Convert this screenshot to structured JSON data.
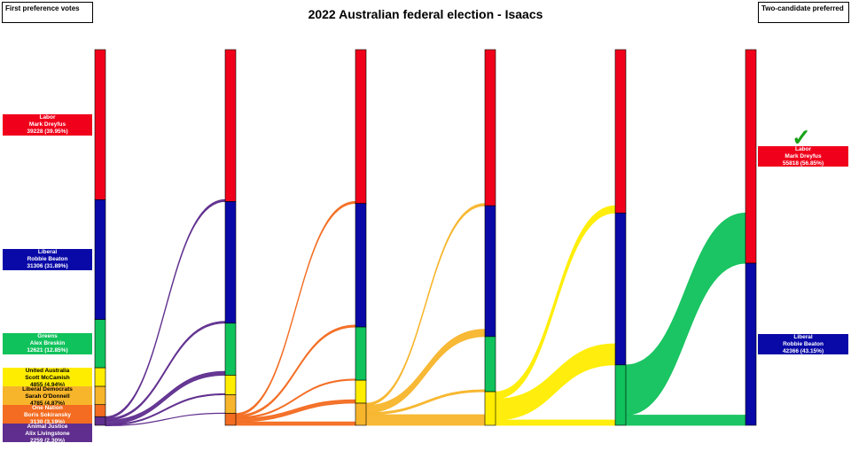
{
  "title": "2022 Australian federal election - Isaacs",
  "left_label": "First preference votes",
  "right_label": "Two-candidate preferred",
  "winner_mark": "✓",
  "colors": {
    "Labor": "#f0001b",
    "Liberal": "#0909a8",
    "Greens": "#10c25b",
    "United Australia": "#ffed00",
    "Liberal Democrats": "#f7b52b",
    "One Nation": "#f36c21",
    "Animal Justice": "#5f2e8e"
  },
  "chart_data": {
    "type": "sankey",
    "title": "2022 Australian federal election - Isaacs",
    "total_votes": 98184,
    "first_preferences": [
      {
        "party": "Labor",
        "candidate": "Mark Dreyfus",
        "votes": 39228,
        "pct_label": "39228 (39.95%)",
        "text_color": "#ffffff"
      },
      {
        "party": "Liberal",
        "candidate": "Robbie Beaton",
        "votes": 31306,
        "pct_label": "31306 (31.89%)",
        "text_color": "#ffffff"
      },
      {
        "party": "Greens",
        "candidate": "Alex Breskin",
        "votes": 12621,
        "pct_label": "12621 (12.85%)",
        "text_color": "#ffffff"
      },
      {
        "party": "United Australia",
        "candidate": "Scott McCamish",
        "votes": 4855,
        "pct_label": "4855 (4.94%)",
        "text_color": "#000000"
      },
      {
        "party": "Liberal Democrats",
        "candidate": "Sarah O'Donnell",
        "votes": 4785,
        "pct_label": "4785 (4.87%)",
        "text_color": "#000000"
      },
      {
        "party": "One Nation",
        "candidate": "Boris Sokiransky",
        "votes": 3130,
        "pct_label": "3130 (3.19%)",
        "text_color": "#ffffff"
      },
      {
        "party": "Animal Justice",
        "candidate": "Alix Livingstone",
        "votes": 2259,
        "pct_label": "2259 (2.30%)",
        "text_color": "#ffffff"
      }
    ],
    "rounds": [
      {
        "Labor": 39228,
        "Liberal": 31306,
        "Greens": 12621,
        "United Australia": 4855,
        "Liberal Democrats": 4785,
        "One Nation": 3130,
        "Animal Justice": 2259
      },
      {
        "Labor": 39700,
        "Liberal": 31800,
        "Greens": 13600,
        "United Australia": 5100,
        "Liberal Democrats": 4880,
        "One Nation": 3100
      },
      {
        "Labor": 40200,
        "Liberal": 32300,
        "Greens": 13900,
        "United Australia": 6000,
        "Liberal Democrats": 5784
      },
      {
        "Labor": 40800,
        "Liberal": 34200,
        "Greens": 14400,
        "United Australia": 8784
      },
      {
        "Labor": 42700,
        "Liberal": 39700,
        "Greens": 15784
      },
      {
        "Labor": 55818,
        "Liberal": 42366
      }
    ],
    "flows": [
      {
        "from": "Animal Justice",
        "to": {
          "Labor": 500,
          "Liberal": 500,
          "Greens": 1000,
          "United Australia": 300,
          "Liberal Democrats": 100,
          "One Nation": 0
        }
      },
      {
        "from": "One Nation",
        "to": {
          "Labor": 500,
          "Liberal": 500,
          "Greens": 300,
          "United Australia": 900,
          "Liberal Democrats": 900
        }
      },
      {
        "from": "Liberal Democrats",
        "to": {
          "Labor": 600,
          "Liberal": 1900,
          "Greens": 500,
          "United Australia": 2784
        }
      },
      {
        "from": "United Australia",
        "to": {
          "Labor": 1900,
          "Liberal": 5500,
          "Greens": 1384
        }
      },
      {
        "from": "Greens",
        "to": {
          "Labor": 13118,
          "Liberal": 2666
        }
      }
    ],
    "two_candidate_preferred": [
      {
        "party": "Labor",
        "candidate": "Mark Dreyfus",
        "votes": 55818,
        "pct_label": "55818 (56.85%)",
        "winner": true
      },
      {
        "party": "Liberal",
        "candidate": "Robbie Beaton",
        "votes": 42366,
        "pct_label": "42366 (43.15%)",
        "winner": false
      }
    ]
  }
}
